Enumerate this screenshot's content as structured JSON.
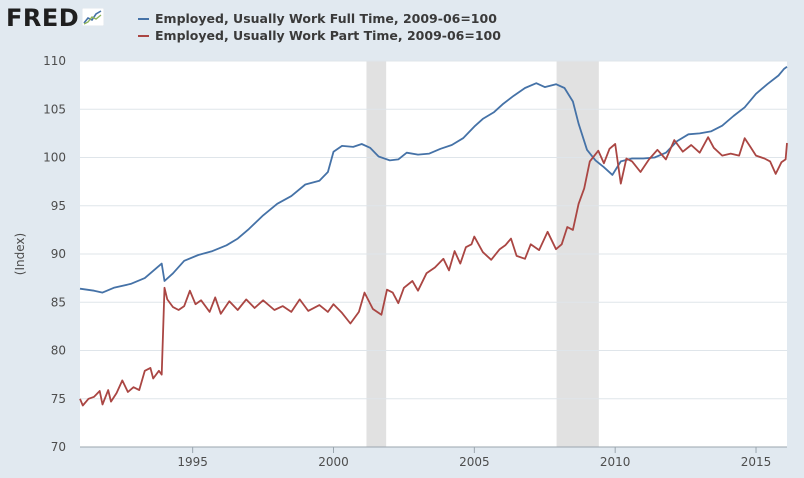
{
  "app": {
    "logo_text": "FRED",
    "logo_icon": "line-chart-icon"
  },
  "colors": {
    "background": "#e1e9f0",
    "plot_background": "#ffffff",
    "grid": "#dfe5ea",
    "recession": "#e1e1e1",
    "full_time": "#4572a7",
    "part_time": "#aa4643"
  },
  "chart_data": {
    "type": "line",
    "title": "",
    "xlabel": "",
    "ylabel": "(Index)",
    "xlim": [
      1991.0,
      2016.1
    ],
    "ylim": [
      70,
      110
    ],
    "x_ticks": [
      {
        "value": 1995,
        "label": "1995"
      },
      {
        "value": 2000,
        "label": "2000"
      },
      {
        "value": 2005,
        "label": "2005"
      },
      {
        "value": 2010,
        "label": "2010"
      },
      {
        "value": 2015,
        "label": "2015"
      }
    ],
    "y_ticks": [
      {
        "value": 70,
        "label": "70"
      },
      {
        "value": 75,
        "label": "75"
      },
      {
        "value": 80,
        "label": "80"
      },
      {
        "value": 85,
        "label": "85"
      },
      {
        "value": 90,
        "label": "90"
      },
      {
        "value": 95,
        "label": "95"
      },
      {
        "value": 100,
        "label": "100"
      },
      {
        "value": 105,
        "label": "105"
      },
      {
        "value": 110,
        "label": "110"
      }
    ],
    "grid": true,
    "legend_position": "top",
    "recessions": [
      [
        2001.17,
        2001.87
      ],
      [
        2007.92,
        2009.42
      ]
    ],
    "series": [
      {
        "name": "Employed, Usually Work Full Time, 2009-06=100",
        "color": "#4572a7",
        "points": [
          [
            1991.0,
            86.4
          ],
          [
            1991.5,
            86.2
          ],
          [
            1991.8,
            86.0
          ],
          [
            1992.2,
            86.5
          ],
          [
            1992.8,
            86.9
          ],
          [
            1993.3,
            87.5
          ],
          [
            1993.9,
            89.0
          ],
          [
            1994.0,
            87.2
          ],
          [
            1994.3,
            88.0
          ],
          [
            1994.7,
            89.3
          ],
          [
            1995.2,
            89.9
          ],
          [
            1995.7,
            90.3
          ],
          [
            1996.2,
            90.9
          ],
          [
            1996.6,
            91.6
          ],
          [
            1997.0,
            92.6
          ],
          [
            1997.5,
            94.0
          ],
          [
            1998.0,
            95.2
          ],
          [
            1998.5,
            96.0
          ],
          [
            1999.0,
            97.2
          ],
          [
            1999.5,
            97.6
          ],
          [
            1999.8,
            98.5
          ],
          [
            2000.0,
            100.6
          ],
          [
            2000.3,
            101.2
          ],
          [
            2000.7,
            101.1
          ],
          [
            2001.0,
            101.4
          ],
          [
            2001.3,
            101.0
          ],
          [
            2001.6,
            100.1
          ],
          [
            2002.0,
            99.7
          ],
          [
            2002.3,
            99.8
          ],
          [
            2002.6,
            100.5
          ],
          [
            2003.0,
            100.3
          ],
          [
            2003.4,
            100.4
          ],
          [
            2003.8,
            100.9
          ],
          [
            2004.2,
            101.3
          ],
          [
            2004.6,
            102.0
          ],
          [
            2005.0,
            103.2
          ],
          [
            2005.3,
            104.0
          ],
          [
            2005.7,
            104.7
          ],
          [
            2006.0,
            105.5
          ],
          [
            2006.4,
            106.4
          ],
          [
            2006.8,
            107.2
          ],
          [
            2007.2,
            107.7
          ],
          [
            2007.5,
            107.3
          ],
          [
            2007.9,
            107.6
          ],
          [
            2008.2,
            107.2
          ],
          [
            2008.5,
            105.8
          ],
          [
            2008.7,
            103.5
          ],
          [
            2009.0,
            100.8
          ],
          [
            2009.3,
            99.7
          ],
          [
            2009.6,
            99.0
          ],
          [
            2009.9,
            98.2
          ],
          [
            2010.2,
            99.6
          ],
          [
            2010.6,
            99.9
          ],
          [
            2011.0,
            99.9
          ],
          [
            2011.4,
            100.0
          ],
          [
            2011.8,
            100.5
          ],
          [
            2012.2,
            101.7
          ],
          [
            2012.6,
            102.4
          ],
          [
            2013.0,
            102.5
          ],
          [
            2013.4,
            102.7
          ],
          [
            2013.8,
            103.3
          ],
          [
            2014.2,
            104.3
          ],
          [
            2014.6,
            105.2
          ],
          [
            2015.0,
            106.6
          ],
          [
            2015.4,
            107.6
          ],
          [
            2015.8,
            108.5
          ],
          [
            2016.0,
            109.2
          ],
          [
            2016.1,
            109.4
          ]
        ]
      },
      {
        "name": "Employed, Usually Work Part Time, 2009-06=100",
        "color": "#aa4643",
        "points": [
          [
            1991.0,
            75.0
          ],
          [
            1991.1,
            74.3
          ],
          [
            1991.3,
            75.0
          ],
          [
            1991.5,
            75.2
          ],
          [
            1991.7,
            75.8
          ],
          [
            1991.8,
            74.4
          ],
          [
            1992.0,
            75.9
          ],
          [
            1992.1,
            74.7
          ],
          [
            1992.3,
            75.6
          ],
          [
            1992.5,
            76.9
          ],
          [
            1992.7,
            75.7
          ],
          [
            1992.9,
            76.2
          ],
          [
            1993.1,
            75.9
          ],
          [
            1993.3,
            77.9
          ],
          [
            1993.5,
            78.2
          ],
          [
            1993.6,
            77.1
          ],
          [
            1993.8,
            77.9
          ],
          [
            1993.9,
            77.5
          ],
          [
            1994.0,
            86.5
          ],
          [
            1994.1,
            85.3
          ],
          [
            1994.3,
            84.5
          ],
          [
            1994.5,
            84.2
          ],
          [
            1994.7,
            84.6
          ],
          [
            1994.9,
            86.2
          ],
          [
            1995.1,
            84.8
          ],
          [
            1995.3,
            85.2
          ],
          [
            1995.6,
            84.0
          ],
          [
            1995.8,
            85.5
          ],
          [
            1996.0,
            83.8
          ],
          [
            1996.3,
            85.1
          ],
          [
            1996.6,
            84.2
          ],
          [
            1996.9,
            85.3
          ],
          [
            1997.2,
            84.4
          ],
          [
            1997.5,
            85.2
          ],
          [
            1997.9,
            84.2
          ],
          [
            1998.2,
            84.6
          ],
          [
            1998.5,
            84.0
          ],
          [
            1998.8,
            85.3
          ],
          [
            1999.1,
            84.1
          ],
          [
            1999.5,
            84.7
          ],
          [
            1999.8,
            84.0
          ],
          [
            2000.0,
            84.8
          ],
          [
            2000.3,
            83.9
          ],
          [
            2000.6,
            82.8
          ],
          [
            2000.9,
            84.0
          ],
          [
            2001.1,
            86.0
          ],
          [
            2001.4,
            84.3
          ],
          [
            2001.7,
            83.7
          ],
          [
            2001.9,
            86.3
          ],
          [
            2002.1,
            86.0
          ],
          [
            2002.3,
            84.9
          ],
          [
            2002.5,
            86.5
          ],
          [
            2002.8,
            87.2
          ],
          [
            2003.0,
            86.2
          ],
          [
            2003.3,
            88.0
          ],
          [
            2003.6,
            88.6
          ],
          [
            2003.9,
            89.5
          ],
          [
            2004.1,
            88.3
          ],
          [
            2004.3,
            90.3
          ],
          [
            2004.5,
            89.0
          ],
          [
            2004.7,
            90.7
          ],
          [
            2004.9,
            91.0
          ],
          [
            2005.0,
            91.8
          ],
          [
            2005.3,
            90.2
          ],
          [
            2005.6,
            89.4
          ],
          [
            2005.9,
            90.5
          ],
          [
            2006.1,
            90.9
          ],
          [
            2006.3,
            91.6
          ],
          [
            2006.5,
            89.8
          ],
          [
            2006.8,
            89.5
          ],
          [
            2007.0,
            91.0
          ],
          [
            2007.3,
            90.4
          ],
          [
            2007.6,
            92.3
          ],
          [
            2007.9,
            90.5
          ],
          [
            2008.1,
            91.0
          ],
          [
            2008.3,
            92.8
          ],
          [
            2008.5,
            92.5
          ],
          [
            2008.7,
            95.2
          ],
          [
            2008.9,
            96.8
          ],
          [
            2009.1,
            99.6
          ],
          [
            2009.4,
            100.7
          ],
          [
            2009.6,
            99.4
          ],
          [
            2009.8,
            100.9
          ],
          [
            2010.0,
            101.4
          ],
          [
            2010.2,
            97.3
          ],
          [
            2010.4,
            99.9
          ],
          [
            2010.6,
            99.6
          ],
          [
            2010.9,
            98.5
          ],
          [
            2011.2,
            99.8
          ],
          [
            2011.5,
            100.8
          ],
          [
            2011.8,
            99.8
          ],
          [
            2012.1,
            101.8
          ],
          [
            2012.4,
            100.6
          ],
          [
            2012.7,
            101.3
          ],
          [
            2013.0,
            100.5
          ],
          [
            2013.3,
            102.1
          ],
          [
            2013.5,
            101.0
          ],
          [
            2013.8,
            100.2
          ],
          [
            2014.1,
            100.4
          ],
          [
            2014.4,
            100.2
          ],
          [
            2014.6,
            102.0
          ],
          [
            2014.8,
            101.1
          ],
          [
            2015.0,
            100.2
          ],
          [
            2015.3,
            99.9
          ],
          [
            2015.5,
            99.6
          ],
          [
            2015.7,
            98.3
          ],
          [
            2015.9,
            99.5
          ],
          [
            2016.05,
            99.8
          ],
          [
            2016.1,
            101.5
          ]
        ]
      }
    ]
  }
}
